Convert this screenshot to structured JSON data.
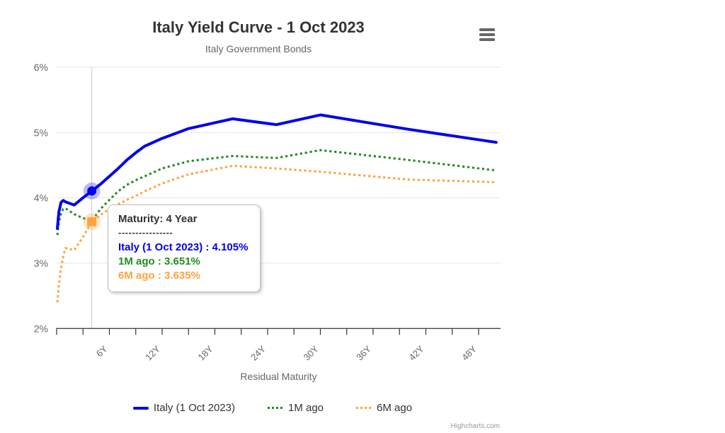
{
  "chart": {
    "title": "Italy Yield Curve - 1 Oct 2023",
    "subtitle": "Italy Government Bonds",
    "credit": "Highcharts.com"
  },
  "tooltip": {
    "header": "Maturity: 4 Year",
    "separator": "----------------",
    "rows": [
      {
        "text": "Italy (1 Oct 2023) : 4.105%",
        "color": "#0000ee"
      },
      {
        "text": "1M ago : 3.651%",
        "color": "#228b22"
      },
      {
        "text": "6M ago : 3.635%",
        "color": "#ffa33f"
      }
    ]
  },
  "legend": [
    {
      "label": "Italy (1 Oct 2023)",
      "color": "#0000ee",
      "style": "solid"
    },
    {
      "label": "1M ago",
      "color": "#228b22",
      "style": "dotted"
    },
    {
      "label": "6M ago",
      "color": "#ffa33f",
      "style": "dotted"
    }
  ],
  "chart_data": {
    "type": "line",
    "title": "Italy Yield Curve - 1 Oct 2023",
    "subtitle": "Italy Government Bonds",
    "xlabel": "Residual Maturity",
    "ylabel": "",
    "x_unit": "years",
    "xlim": [
      0,
      50.5
    ],
    "ylim": [
      2,
      6
    ],
    "grid": "horizontal",
    "legend_position": "bottom",
    "y_tick_values": [
      2,
      3,
      4,
      5,
      6
    ],
    "y_tick_labels": [
      "2%",
      "3%",
      "4%",
      "5%",
      "6%"
    ],
    "x_minor_tick_step": 3,
    "x_label_years": [
      6,
      12,
      18,
      24,
      30,
      36,
      42,
      48
    ],
    "x_label_ticks": [
      "6Y",
      "12Y",
      "18Y",
      "24Y",
      "30Y",
      "36Y",
      "42Y",
      "48Y"
    ],
    "x": [
      0.08,
      0.25,
      0.5,
      0.75,
      1,
      2,
      3,
      4,
      5,
      6,
      7,
      8,
      9,
      10,
      12,
      15,
      20,
      25,
      30,
      40,
      50
    ],
    "series": [
      {
        "name": "Italy (1 Oct 2023)",
        "color": "#0000ee",
        "dash": "solid",
        "values": [
          3.53,
          3.78,
          3.93,
          3.96,
          3.94,
          3.89,
          4.0,
          4.105,
          4.21,
          4.33,
          4.45,
          4.58,
          4.69,
          4.79,
          4.91,
          5.06,
          5.21,
          5.12,
          5.27,
          5.05,
          4.85
        ]
      },
      {
        "name": "1M ago",
        "color": "#228b22",
        "dash": "dot",
        "values": [
          3.43,
          3.62,
          3.76,
          3.83,
          3.84,
          3.75,
          3.69,
          3.651,
          3.83,
          3.97,
          4.1,
          4.2,
          4.27,
          4.33,
          4.45,
          4.56,
          4.64,
          4.61,
          4.73,
          4.58,
          4.42
        ]
      },
      {
        "name": "6M ago",
        "color": "#ffa33f",
        "dash": "dot",
        "values": [
          2.4,
          2.66,
          2.92,
          3.1,
          3.23,
          3.2,
          3.4,
          3.635,
          3.74,
          3.83,
          3.9,
          3.97,
          4.03,
          4.1,
          4.22,
          4.36,
          4.49,
          4.45,
          4.4,
          4.28,
          4.24
        ]
      }
    ],
    "highlight": {
      "x_year": 4,
      "label": "4 Year",
      "markers": [
        {
          "series": 0,
          "shape": "circle",
          "value": 4.105
        },
        {
          "series": 2,
          "shape": "square",
          "value": 3.635
        }
      ]
    }
  }
}
